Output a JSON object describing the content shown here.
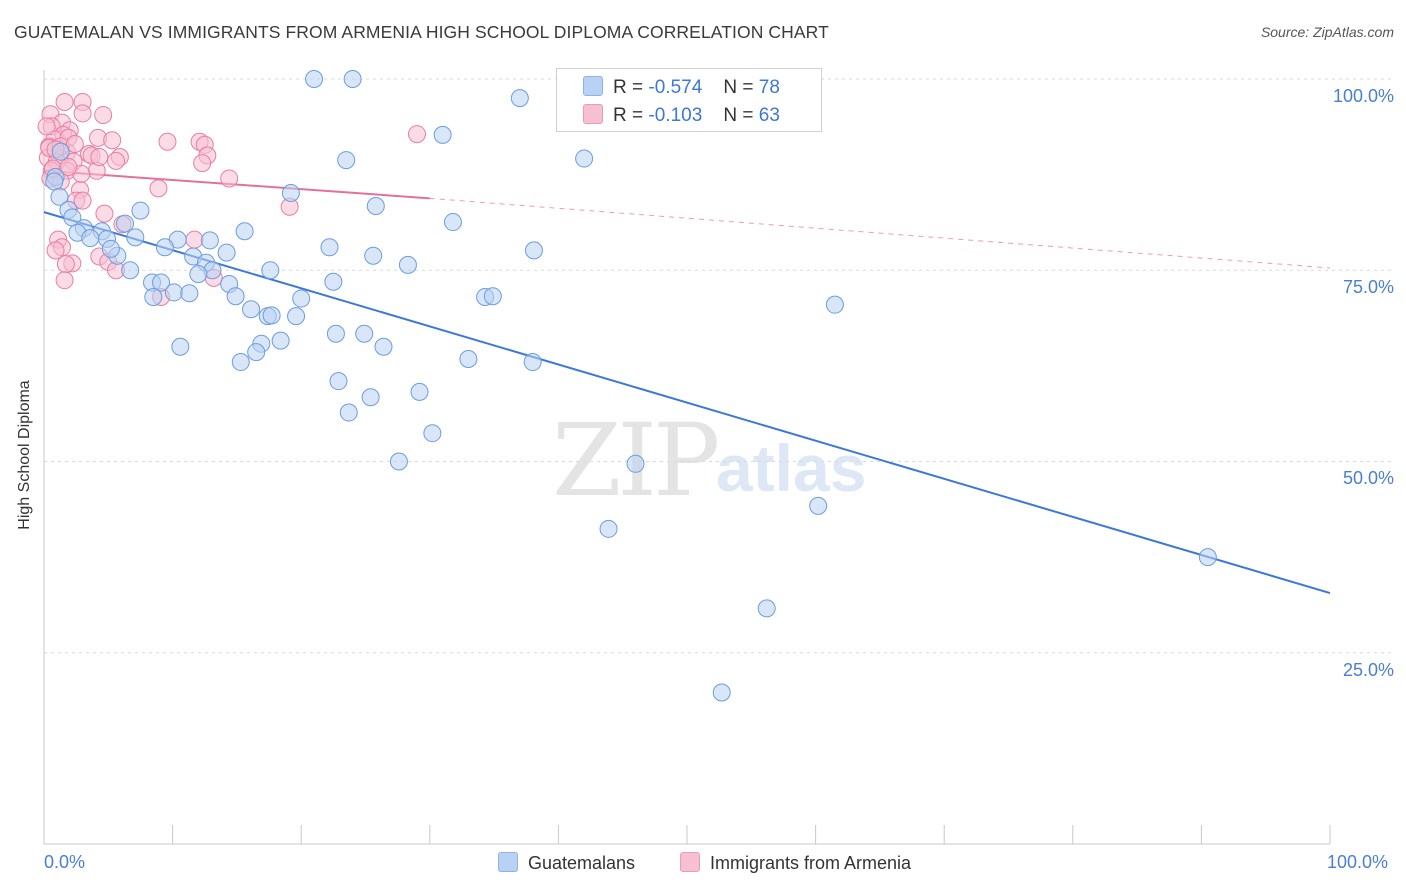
{
  "chart_data": {
    "type": "scatter",
    "title": "GUATEMALAN VS IMMIGRANTS FROM ARMENIA HIGH SCHOOL DIPLOMA CORRELATION CHART",
    "source": "Source: ZipAtlas.com",
    "ylabel": "High School Diploma",
    "xlabel": "",
    "xlim": [
      0,
      100
    ],
    "ylim": [
      0,
      102
    ],
    "x_tick_labels": [
      "0.0%",
      "100.0%"
    ],
    "y_tick_values": [
      25,
      50,
      75,
      100
    ],
    "y_tick_labels": [
      "25.0%",
      "50.0%",
      "75.0%",
      "100.0%"
    ],
    "watermark": [
      "ZIP",
      "atlas"
    ],
    "legend": [
      {
        "name": "Guatemalans",
        "r_label": "R =",
        "r": "-0.574",
        "n_label": "N =",
        "n": "78"
      },
      {
        "name": "Immigrants from Armenia",
        "r_label": "R =",
        "r": "-0.103",
        "n_label": "N =",
        "n": "63"
      }
    ],
    "series": [
      {
        "name": "Guatemalans",
        "color": "#6a9de0",
        "fill": "#b9d1f3",
        "trend": {
          "x0": 0,
          "y0": 82.6,
          "x1": 100,
          "y1": 32.8,
          "dashed_from": null
        },
        "points": [
          [
            21,
            100
          ],
          [
            24,
            100
          ],
          [
            37,
            97.5
          ],
          [
            31,
            92.7
          ],
          [
            42,
            89.6
          ],
          [
            23.5,
            89.4
          ],
          [
            0.9,
            87.2
          ],
          [
            0.8,
            86.6
          ],
          [
            19.2,
            85.1
          ],
          [
            25.8,
            83.4
          ],
          [
            1.2,
            84.6
          ],
          [
            1.9,
            82.9
          ],
          [
            2.2,
            81.9
          ],
          [
            7.5,
            82.8
          ],
          [
            31.8,
            81.3
          ],
          [
            3.1,
            80.5
          ],
          [
            6.3,
            81.1
          ],
          [
            4.5,
            80.1
          ],
          [
            15.6,
            80.1
          ],
          [
            2.6,
            79.9
          ],
          [
            3.6,
            79.2
          ],
          [
            4.9,
            79.1
          ],
          [
            7.1,
            79.3
          ],
          [
            10.4,
            79.0
          ],
          [
            12.9,
            78.9
          ],
          [
            22.2,
            78.0
          ],
          [
            9.4,
            78.0
          ],
          [
            14.2,
            77.3
          ],
          [
            38.1,
            77.6
          ],
          [
            5.7,
            76.9
          ],
          [
            11.6,
            76.8
          ],
          [
            25.6,
            76.9
          ],
          [
            12.6,
            76.0
          ],
          [
            28.3,
            75.7
          ],
          [
            13.1,
            75.0
          ],
          [
            17.6,
            75.0
          ],
          [
            6.7,
            75.0
          ],
          [
            22.5,
            73.5
          ],
          [
            8.4,
            73.4
          ],
          [
            9.1,
            73.4
          ],
          [
            14.4,
            73.2
          ],
          [
            10.1,
            72.1
          ],
          [
            11.3,
            72.0
          ],
          [
            8.5,
            71.5
          ],
          [
            14.9,
            71.6
          ],
          [
            20.0,
            71.3
          ],
          [
            34.3,
            71.5
          ],
          [
            34.9,
            71.6
          ],
          [
            16.1,
            69.9
          ],
          [
            17.4,
            69.0
          ],
          [
            17.7,
            69.1
          ],
          [
            19.6,
            69.0
          ],
          [
            61.5,
            70.5
          ],
          [
            22.7,
            66.7
          ],
          [
            24.9,
            66.7
          ],
          [
            18.4,
            65.8
          ],
          [
            16.9,
            65.4
          ],
          [
            10.6,
            65.0
          ],
          [
            26.4,
            65.0
          ],
          [
            16.5,
            64.3
          ],
          [
            33.0,
            63.4
          ],
          [
            15.3,
            63.0
          ],
          [
            38.0,
            63.0
          ],
          [
            22.9,
            60.5
          ],
          [
            29.2,
            59.1
          ],
          [
            25.4,
            58.4
          ],
          [
            23.7,
            56.4
          ],
          [
            30.2,
            53.7
          ],
          [
            27.6,
            50.0
          ],
          [
            46.0,
            49.7
          ],
          [
            60.2,
            44.2
          ],
          [
            43.9,
            41.2
          ],
          [
            90.5,
            37.5
          ],
          [
            56.2,
            30.8
          ],
          [
            52.7,
            19.8
          ],
          [
            1.3,
            90.5
          ],
          [
            12.0,
            74.5
          ],
          [
            5.2,
            77.8
          ]
        ]
      },
      {
        "name": "Immigrants from Armenia",
        "color": "#e87ea3",
        "fill": "#f7c0d2",
        "trend": {
          "x0": 0,
          "y0": 88.0,
          "x1": 30,
          "y1": 84.4,
          "dashed_to": 100,
          "dashed_y1": 75.3
        },
        "points": [
          [
            1.6,
            97.0
          ],
          [
            3.0,
            97.0
          ],
          [
            0.5,
            95.4
          ],
          [
            1.4,
            94.3
          ],
          [
            3.0,
            95.5
          ],
          [
            4.6,
            95.3
          ],
          [
            2.0,
            93.3
          ],
          [
            0.6,
            93.8
          ],
          [
            1.5,
            92.7
          ],
          [
            0.8,
            92.1
          ],
          [
            1.9,
            92.3
          ],
          [
            4.2,
            92.3
          ],
          [
            5.3,
            92.0
          ],
          [
            9.6,
            91.8
          ],
          [
            12.1,
            91.8
          ],
          [
            12.5,
            91.4
          ],
          [
            29.0,
            92.8
          ],
          [
            0.4,
            91.2
          ],
          [
            1.8,
            90.4
          ],
          [
            0.3,
            89.7
          ],
          [
            1.2,
            89.7
          ],
          [
            3.5,
            90.2
          ],
          [
            5.9,
            89.8
          ],
          [
            3.7,
            90.0
          ],
          [
            1.0,
            89.2
          ],
          [
            2.3,
            89.2
          ],
          [
            5.6,
            89.3
          ],
          [
            12.7,
            90.0
          ],
          [
            12.3,
            89.0
          ],
          [
            0.6,
            88.0
          ],
          [
            1.8,
            88.0
          ],
          [
            4.1,
            88.0
          ],
          [
            0.5,
            87.0
          ],
          [
            1.3,
            86.6
          ],
          [
            14.4,
            87.0
          ],
          [
            2.8,
            85.5
          ],
          [
            8.9,
            85.7
          ],
          [
            2.5,
            84.1
          ],
          [
            3.0,
            84.1
          ],
          [
            19.1,
            83.3
          ],
          [
            4.7,
            82.4
          ],
          [
            6.1,
            81.0
          ],
          [
            1.1,
            79.0
          ],
          [
            1.4,
            78.0
          ],
          [
            0.9,
            77.6
          ],
          [
            11.7,
            79.0
          ],
          [
            4.3,
            76.8
          ],
          [
            2.2,
            75.9
          ],
          [
            1.7,
            75.8
          ],
          [
            5.0,
            76.1
          ],
          [
            5.6,
            75.0
          ],
          [
            13.2,
            74.0
          ],
          [
            1.6,
            73.7
          ],
          [
            9.1,
            71.5
          ],
          [
            0.4,
            91.0
          ],
          [
            0.2,
            93.8
          ],
          [
            1.3,
            91.2
          ],
          [
            0.7,
            88.3
          ],
          [
            2.9,
            87.6
          ],
          [
            2.4,
            91.5
          ],
          [
            4.3,
            89.8
          ],
          [
            1.9,
            88.5
          ],
          [
            0.9,
            90.8
          ]
        ]
      }
    ]
  }
}
